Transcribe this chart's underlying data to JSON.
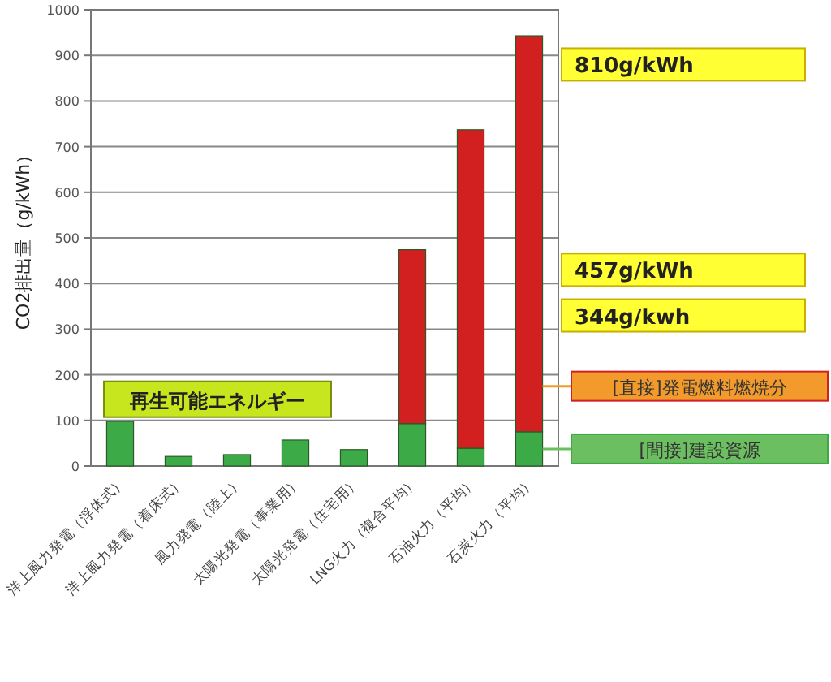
{
  "chart_data": {
    "type": "bar",
    "stacked": true,
    "ylabel": "CO2排出量（g/kWh）",
    "categories": [
      "洋上風力発電（浮体式）",
      "洋上風力発電（着床式）",
      "風力発電（陸上）",
      "太陽光発電（事業用）",
      "太陽光発電（住宅用）",
      "LNG火力（複合平均）",
      "石油火力（平均）",
      "石炭火力（平均）"
    ],
    "series": [
      {
        "name": "[間接]建設資源",
        "color": "#3daa48",
        "values": [
          98,
          21,
          25,
          57,
          36,
          93,
          39,
          75
        ]
      },
      {
        "name": "[直接]発電燃料燃焼分",
        "color": "#d21f1f",
        "values": [
          0,
          0,
          0,
          0,
          0,
          381,
          698,
          868
        ]
      }
    ],
    "ylim": [
      0,
      1000
    ],
    "yticks": [
      0,
      100,
      200,
      300,
      400,
      500,
      600,
      700,
      800,
      900,
      1000
    ],
    "grid": "y",
    "annotations": [
      "810g/kWh",
      "457g/kWh",
      "344g/kwh",
      "再生可能エネルギー"
    ]
  }
}
